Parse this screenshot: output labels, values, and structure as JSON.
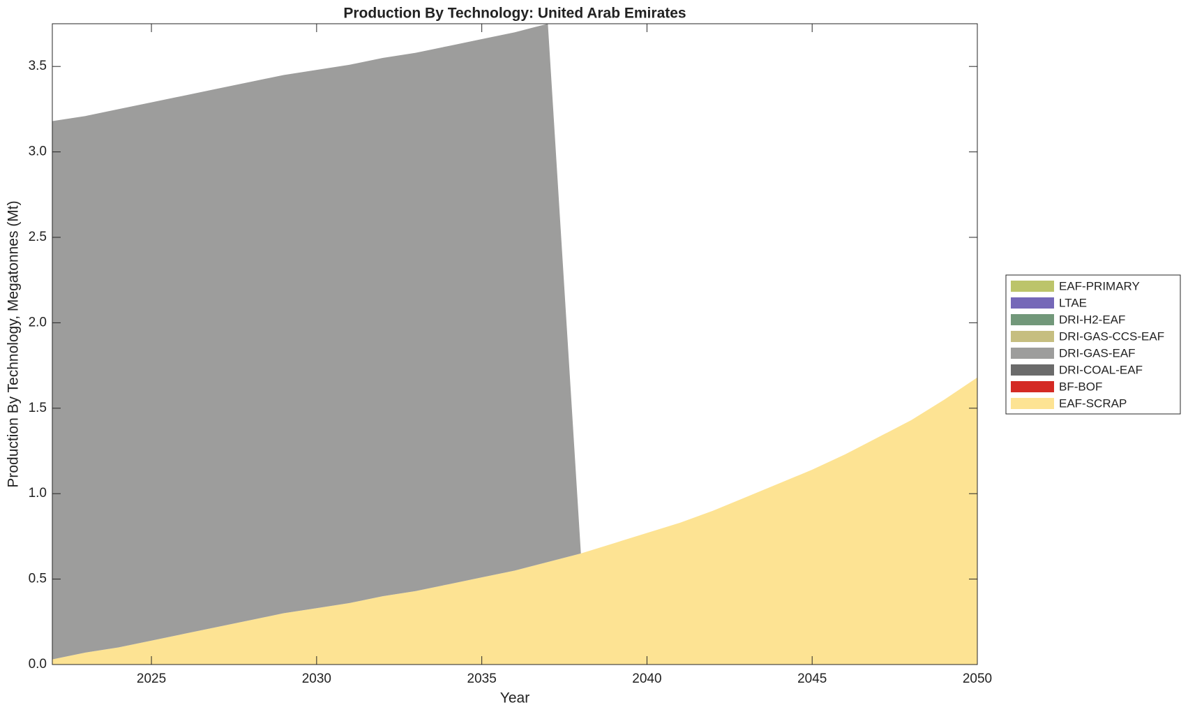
{
  "chart_data": {
    "type": "stacked-area",
    "title": "Production By Technology: United Arab Emirates",
    "x_label": "Year",
    "y_label": "Production By Technology, Megatonnes (Mt)",
    "x": [
      2022,
      2023,
      2024,
      2025,
      2026,
      2027,
      2028,
      2029,
      2030,
      2031,
      2032,
      2033,
      2034,
      2035,
      2036,
      2037,
      2038,
      2039,
      2040,
      2041,
      2042,
      2043,
      2044,
      2045,
      2046,
      2047,
      2048,
      2049,
      2050
    ],
    "series": [
      {
        "name": "EAF-PRIMARY",
        "color": "#bcc46a",
        "values": [
          0,
          0,
          0,
          0,
          0,
          0,
          0,
          0,
          0,
          0,
          0,
          0,
          0,
          0,
          0,
          0,
          0,
          0,
          0,
          0,
          0,
          0,
          0,
          0,
          0,
          0,
          0,
          0,
          0
        ]
      },
      {
        "name": "LTAE",
        "color": "#7568b8",
        "values": [
          0,
          0,
          0,
          0,
          0,
          0,
          0,
          0,
          0,
          0,
          0,
          0,
          0,
          0,
          0,
          0,
          0,
          0,
          0,
          0,
          0,
          0,
          0,
          0,
          0,
          0,
          0,
          0,
          0
        ]
      },
      {
        "name": "DRI-H2-EAF",
        "color": "#72987a",
        "values": [
          0,
          0,
          0,
          0,
          0,
          0,
          0,
          0,
          0,
          0,
          0,
          0,
          0,
          0,
          0,
          0,
          0,
          0,
          0,
          0,
          0,
          0,
          0,
          0,
          0,
          0,
          0,
          0,
          0
        ]
      },
      {
        "name": "DRI-GAS-CCS-EAF",
        "color": "#c6be80",
        "values": [
          0,
          0,
          0,
          0,
          0,
          0,
          0,
          0,
          0,
          0,
          0,
          0,
          0,
          0,
          0,
          0,
          0,
          0,
          0,
          0,
          0,
          0,
          0,
          0,
          0,
          0,
          0,
          0,
          0
        ]
      },
      {
        "name": "DRI-GAS-EAF",
        "color": "#9d9d9c",
        "values": [
          3.15,
          3.14,
          3.15,
          3.15,
          3.15,
          3.15,
          3.15,
          3.15,
          3.15,
          3.15,
          3.15,
          3.15,
          3.15,
          3.15,
          3.15,
          3.15,
          0,
          0,
          0,
          0,
          0,
          0,
          0,
          0,
          0,
          0,
          0,
          0,
          0
        ]
      },
      {
        "name": "DRI-COAL-EAF",
        "color": "#6b6b6b",
        "values": [
          0,
          0,
          0,
          0,
          0,
          0,
          0,
          0,
          0,
          0,
          0,
          0,
          0,
          0,
          0,
          0,
          0,
          0,
          0,
          0,
          0,
          0,
          0,
          0,
          0,
          0,
          0,
          0,
          0
        ]
      },
      {
        "name": "BF-BOF",
        "color": "#d42a24",
        "values": [
          0,
          0,
          0,
          0,
          0,
          0,
          0,
          0,
          0,
          0,
          0,
          0,
          0,
          0,
          0,
          0,
          0,
          0,
          0,
          0,
          0,
          0,
          0,
          0,
          0,
          0,
          0,
          0,
          0
        ]
      },
      {
        "name": "EAF-SCRAP",
        "color": "#fde393",
        "values": [
          0.03,
          0.07,
          0.1,
          0.14,
          0.18,
          0.22,
          0.26,
          0.3,
          0.33,
          0.36,
          0.4,
          0.43,
          0.47,
          0.51,
          0.55,
          0.6,
          0.65,
          0.71,
          0.77,
          0.83,
          0.9,
          0.98,
          1.06,
          1.14,
          1.23,
          1.33,
          1.43,
          1.55,
          1.68
        ]
      }
    ],
    "xlim": [
      2022,
      2050
    ],
    "xticks": [
      2025,
      2030,
      2035,
      2040,
      2045,
      2050
    ],
    "ylim": [
      0,
      3.75
    ],
    "yticks": [
      {
        "value": 0,
        "label": "0.0"
      },
      0.5,
      {
        "value": 1,
        "label": "1.0"
      },
      1.5,
      {
        "value": 2,
        "label": "2.0"
      },
      2.5,
      {
        "value": 3,
        "label": "3.0"
      },
      3.5
    ],
    "legend": "right"
  }
}
